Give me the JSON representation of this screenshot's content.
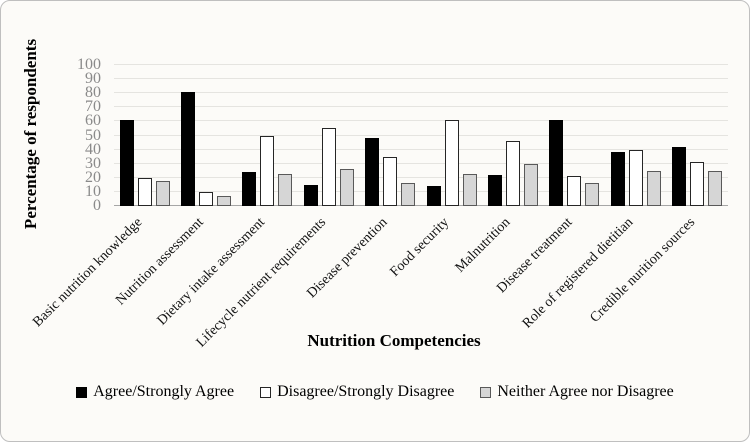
{
  "chart_data": {
    "type": "bar",
    "title": "",
    "xlabel": "Nutrition Competencies",
    "ylabel": "Percentage of respondents",
    "ylim": [
      0,
      100
    ],
    "ytick_step": 10,
    "yticks": [
      0,
      10,
      20,
      30,
      40,
      50,
      60,
      70,
      80,
      90,
      100
    ],
    "grid": true,
    "legend_position": "bottom",
    "categories": [
      "Basic nutrition knowledge",
      "Nutrition assessment",
      "Dietary intake assessment",
      "Lifecycle nutrient requirements",
      "Disease prevention",
      "Food security",
      "Malnutrition",
      "Disease treatment",
      "Role of registered dietitian",
      "Credible nurition sources"
    ],
    "series": [
      {
        "name": "Agree/Strongly Agree",
        "fill": "#000000",
        "border": "#000000",
        "values": [
          61,
          81,
          24,
          15,
          48,
          14,
          22,
          61,
          38,
          42
        ]
      },
      {
        "name": "Disagree/Strongly Disagree",
        "fill": "#ffffff",
        "border": "#262626",
        "values": [
          20,
          10,
          50,
          55,
          35,
          61,
          46,
          21,
          40,
          31
        ]
      },
      {
        "name": "Neither Agree nor Disagree",
        "fill": "#d6d6d6",
        "border": "#595959",
        "values": [
          18,
          7,
          23,
          26,
          16,
          23,
          30,
          16,
          25,
          25
        ]
      }
    ],
    "colors": {
      "gridline": "#e5e4e0",
      "axis_line": "#a6a6a6",
      "tick_label": "#8a8a8a"
    }
  }
}
